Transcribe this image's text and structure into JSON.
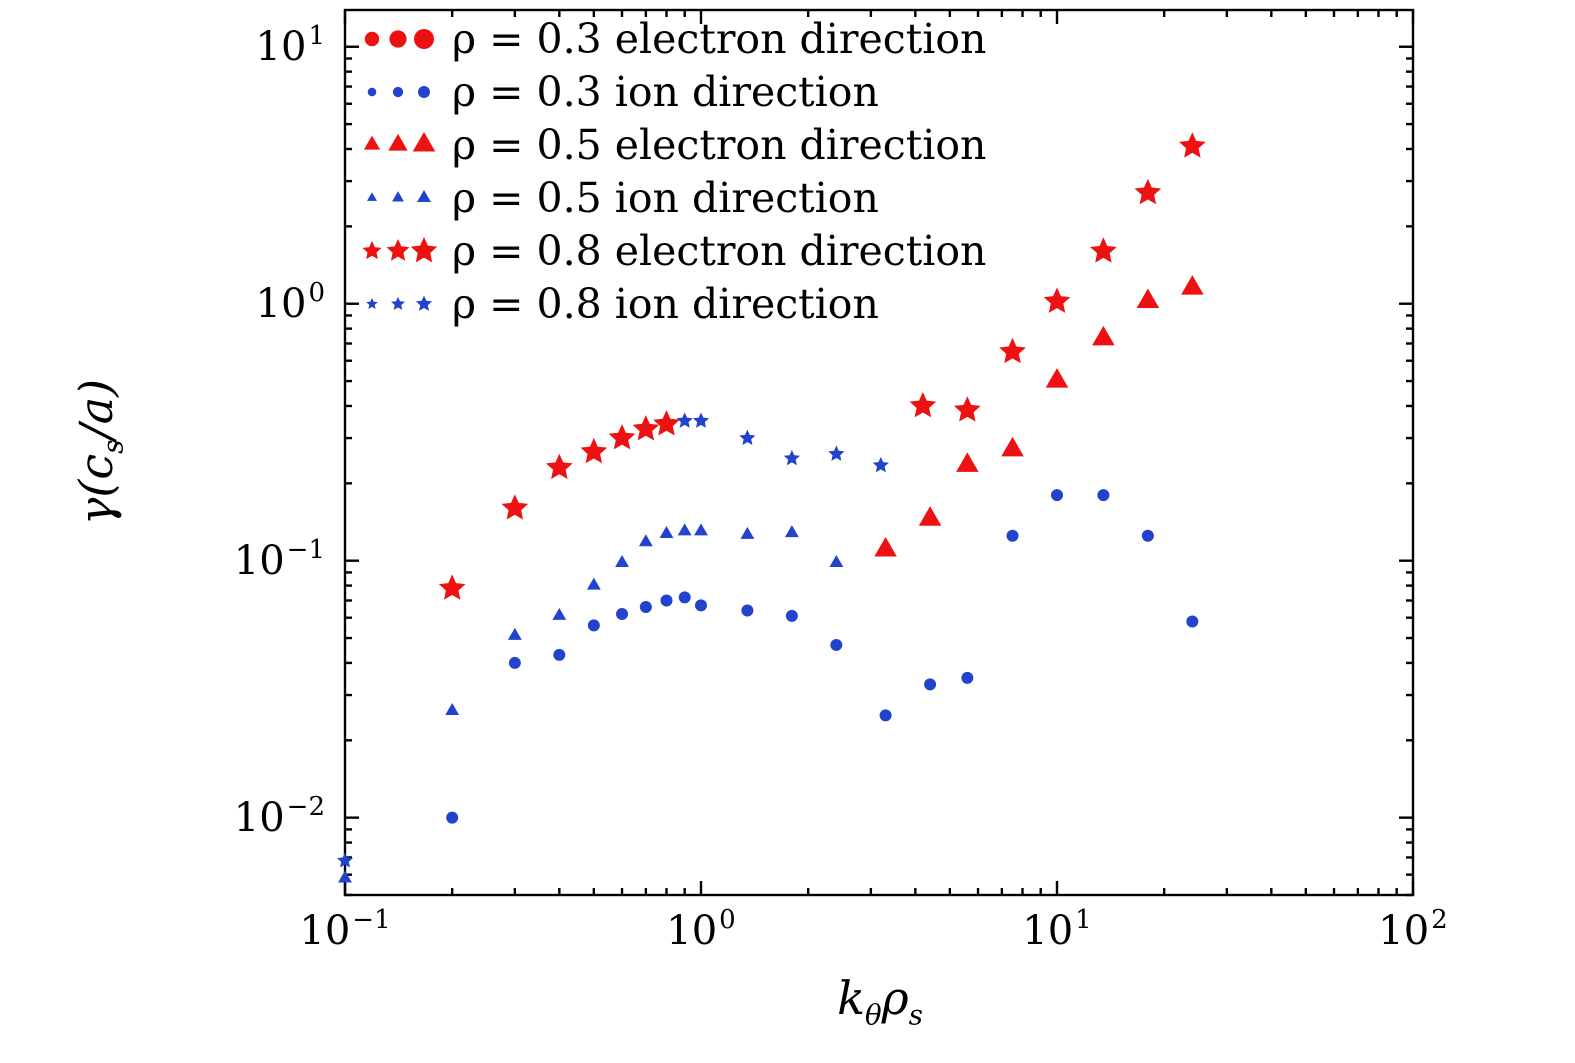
{
  "figure": {
    "background": "#ffffff",
    "axis_color": "#000000",
    "title": ""
  },
  "chart_data": {
    "type": "scatter",
    "scale": "log-log",
    "grid": false,
    "legend_position": "upper-left",
    "title": "",
    "xlabel_plain": "k_theta rho_s",
    "ylabel_plain": "gamma (c_s / a)",
    "xlabel_parts": [
      {
        "text": "k"
      },
      {
        "text": "θ",
        "sub": true
      },
      {
        "text": "ρ"
      },
      {
        "text": "s",
        "sub": true
      }
    ],
    "ylabel_parts": [
      {
        "text": "γ(c"
      },
      {
        "text": "s",
        "sub": true
      },
      {
        "text": "/a)"
      }
    ],
    "xlim": [
      0.1,
      100
    ],
    "ylim": [
      0.005,
      13.9
    ],
    "x_ticks": [
      {
        "base": "10",
        "exp": "−1",
        "value": 0.1
      },
      {
        "base": "10",
        "exp": "0",
        "value": 1
      },
      {
        "base": "10",
        "exp": "1",
        "value": 10
      },
      {
        "base": "10",
        "exp": "2",
        "value": 100
      }
    ],
    "y_ticks": [
      {
        "base": "10",
        "exp": "−2",
        "value": 0.01
      },
      {
        "base": "10",
        "exp": "−1",
        "value": 0.1
      },
      {
        "base": "10",
        "exp": "0",
        "value": 1
      },
      {
        "base": "10",
        "exp": "1",
        "value": 10
      }
    ],
    "colors": {
      "electron_direction": "#ee1111",
      "ion_direction": "#2244cc"
    },
    "series": [
      {
        "name": "ρ = 0.3 electron direction",
        "marker": "circle",
        "color": "#ee1111",
        "size": 10,
        "x": [],
        "y": []
      },
      {
        "name": "ρ = 0.3 ion direction",
        "marker": "circle",
        "color": "#2244cc",
        "size": 6,
        "x": [
          0.2,
          0.3,
          0.4,
          0.5,
          0.6,
          0.7,
          0.8,
          0.9,
          1.0,
          1.35,
          1.8,
          2.4,
          3.3,
          4.4,
          5.6,
          7.5,
          10,
          13.5,
          18,
          24
        ],
        "y": [
          0.01,
          0.04,
          0.043,
          0.056,
          0.062,
          0.066,
          0.07,
          0.072,
          0.067,
          0.064,
          0.061,
          0.047,
          0.025,
          0.033,
          0.035,
          0.125,
          0.18,
          0.18,
          0.125,
          0.058
        ]
      },
      {
        "name": "ρ = 0.5 electron direction",
        "marker": "triangle",
        "color": "#ee1111",
        "size": 13,
        "x": [
          3.3,
          4.4,
          5.6,
          7.5,
          10,
          13.5,
          18,
          24
        ],
        "y": [
          0.11,
          0.145,
          0.235,
          0.27,
          0.5,
          0.73,
          1.02,
          1.15
        ]
      },
      {
        "name": "ρ = 0.5 ion direction",
        "marker": "triangle",
        "color": "#2244cc",
        "size": 8,
        "x": [
          0.1,
          0.2,
          0.3,
          0.4,
          0.5,
          0.6,
          0.7,
          0.8,
          0.9,
          1.0,
          1.35,
          1.8,
          2.4
        ],
        "y": [
          0.0058,
          0.026,
          0.051,
          0.061,
          0.08,
          0.098,
          0.118,
          0.127,
          0.13,
          0.13,
          0.126,
          0.128,
          0.098
        ]
      },
      {
        "name": "ρ = 0.8 electron direction",
        "marker": "star",
        "color": "#ee1111",
        "size": 14,
        "x": [
          0.2,
          0.3,
          0.4,
          0.5,
          0.6,
          0.7,
          0.8,
          4.2,
          5.6,
          7.5,
          10,
          13.5,
          18,
          24
        ],
        "y": [
          0.078,
          0.16,
          0.23,
          0.265,
          0.3,
          0.325,
          0.34,
          0.4,
          0.385,
          0.65,
          1.02,
          1.6,
          2.7,
          4.1
        ]
      },
      {
        "name": "ρ = 0.8 ion direction",
        "marker": "star",
        "color": "#2244cc",
        "size": 8.5,
        "x": [
          0.1,
          0.9,
          1.0,
          1.35,
          1.8,
          2.4,
          3.2
        ],
        "y": [
          0.0068,
          0.35,
          0.35,
          0.3,
          0.25,
          0.26,
          0.235
        ]
      }
    ]
  }
}
